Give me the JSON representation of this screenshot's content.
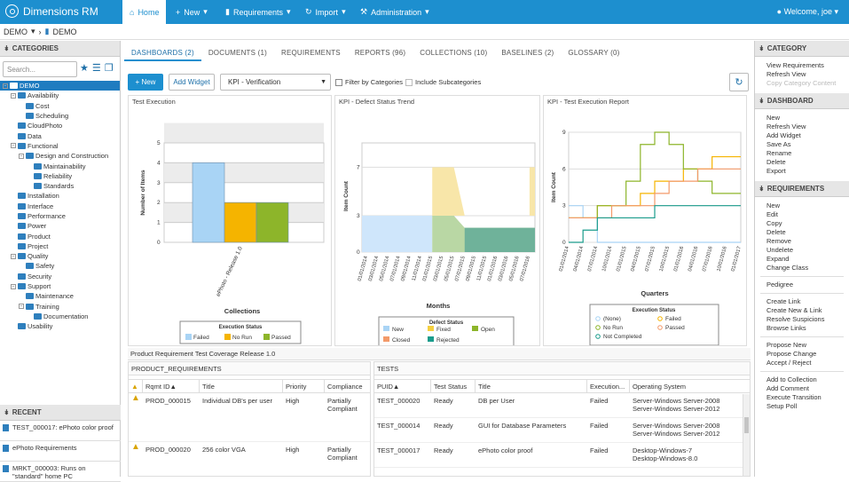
{
  "app": {
    "title": "Dimensions RM",
    "welcome": "Welcome, joe"
  },
  "nav": [
    {
      "label": "Home",
      "icon": "home-icon"
    },
    {
      "label": "New",
      "icon": "plus-icon"
    },
    {
      "label": "Requirements",
      "icon": "document-icon"
    },
    {
      "label": "Import",
      "icon": "import-icon"
    },
    {
      "label": "Administration",
      "icon": "wrench-icon"
    }
  ],
  "breadcrumb": {
    "root": "DEMO",
    "current": "DEMO"
  },
  "left": {
    "categories_title": "CATEGORIES",
    "search_placeholder": "Search...",
    "tree": [
      {
        "label": "DEMO",
        "level": 0,
        "sel": true
      },
      {
        "label": "Availability",
        "level": 1
      },
      {
        "label": "Cost",
        "level": 2
      },
      {
        "label": "Scheduling",
        "level": 2
      },
      {
        "label": "CloudPhoto",
        "level": 1
      },
      {
        "label": "Data",
        "level": 1
      },
      {
        "label": "Functional",
        "level": 1
      },
      {
        "label": "Design and Construction",
        "level": 2
      },
      {
        "label": "Maintainability",
        "level": 3
      },
      {
        "label": "Reliability",
        "level": 3
      },
      {
        "label": "Standards",
        "level": 3
      },
      {
        "label": "Installation",
        "level": 1
      },
      {
        "label": "Interface",
        "level": 1
      },
      {
        "label": "Performance",
        "level": 1
      },
      {
        "label": "Power",
        "level": 1
      },
      {
        "label": "Product",
        "level": 1
      },
      {
        "label": "Project",
        "level": 1
      },
      {
        "label": "Quality",
        "level": 1
      },
      {
        "label": "Safety",
        "level": 2
      },
      {
        "label": "Security",
        "level": 1
      },
      {
        "label": "Support",
        "level": 1
      },
      {
        "label": "Maintenance",
        "level": 2
      },
      {
        "label": "Training",
        "level": 2
      },
      {
        "label": "Documentation",
        "level": 3
      },
      {
        "label": "Usability",
        "level": 1
      }
    ],
    "recent_title": "RECENT",
    "recent": [
      "TEST_000017: ePhoto color proof",
      "ePhoto Requirements",
      "MRKT_000003: Runs on \"standard\" home PC"
    ]
  },
  "tabs": [
    "DASHBOARDS (2)",
    "DOCUMENTS (1)",
    "REQUIREMENTS",
    "REPORTS (96)",
    "COLLECTIONS (10)",
    "BASELINES (2)",
    "GLOSSARY (0)"
  ],
  "toolbar": {
    "new": "New",
    "add_widget": "Add Widget",
    "dashboard_select": "KPI - Verification",
    "filter": "Filter by Categories",
    "include": "Include Subcategories"
  },
  "chart_data": [
    {
      "type": "bar",
      "title": "Test Execution",
      "xlabel": "Collections",
      "ylabel": "Number of Items",
      "categories": [
        "ePhoto - Release 1.0"
      ],
      "series": [
        {
          "name": "Failed",
          "values": [
            4
          ],
          "color": "#a9d4f5"
        },
        {
          "name": "No Run",
          "values": [
            2
          ],
          "color": "#f5b400"
        },
        {
          "name": "Passed",
          "values": [
            2
          ],
          "color": "#8db52a"
        }
      ],
      "ylim": [
        0,
        5
      ],
      "yticks": [
        "0",
        "1",
        "2",
        "3",
        "4",
        "5"
      ],
      "legend_title": "Execution Status"
    },
    {
      "type": "area",
      "title": "KPI - Defect Status Trend",
      "xlabel": "Months",
      "ylabel": "Item Count",
      "x": [
        "01/01/2014",
        "03/01/2014",
        "05/01/2014",
        "07/01/2014",
        "09/01/2014",
        "11/01/2014",
        "01/01/2015",
        "03/01/2015",
        "05/01/2015",
        "07/01/2015",
        "09/01/2015",
        "11/01/2015",
        "01/01/2016",
        "03/01/2016",
        "05/01/2016",
        "07/01/2016"
      ],
      "yticks": [
        "0",
        "3",
        "7"
      ],
      "legend_title": "Defect Status",
      "legend": [
        "New",
        "Fixed",
        "Open",
        "Closed",
        "Rejected"
      ]
    },
    {
      "type": "line",
      "title": "KPI - Test Execution Report",
      "xlabel": "Quarters",
      "ylabel": "Item Count",
      "x": [
        "01/01/2014",
        "04/01/2014",
        "07/01/2014",
        "10/01/2014",
        "01/01/2015",
        "04/01/2015",
        "07/01/2015",
        "10/01/2015",
        "01/01/2016",
        "04/01/2016",
        "07/01/2016",
        "10/01/2016",
        "01/01/2017"
      ],
      "ylim": [
        0,
        9
      ],
      "yticks": [
        "0",
        "3",
        "6",
        "9"
      ],
      "series": [
        {
          "name": "(None)",
          "color": "#a9d4f5",
          "values": [
            3,
            2,
            0,
            0,
            0,
            0,
            0,
            0,
            0,
            0,
            0,
            0,
            0
          ]
        },
        {
          "name": "Failed",
          "color": "#f5b400",
          "values": [
            2,
            2,
            3,
            3,
            3,
            4,
            5,
            5,
            6,
            6,
            7,
            7,
            7
          ]
        },
        {
          "name": "No Run",
          "color": "#8db52a",
          "values": [
            2,
            2,
            3,
            3,
            5,
            8,
            9,
            8,
            6,
            5,
            4,
            4,
            4
          ]
        },
        {
          "name": "Passed",
          "color": "#f39a6a",
          "values": [
            2,
            2,
            2,
            3,
            3,
            3,
            4,
            5,
            5,
            6,
            6,
            6,
            6
          ]
        },
        {
          "name": "Not Completed",
          "color": "#1a9c8c",
          "values": [
            0,
            1,
            2,
            2,
            2,
            2,
            3,
            3,
            3,
            3,
            3,
            3,
            3
          ]
        }
      ],
      "legend_title": "Execution Status"
    }
  ],
  "bottom": {
    "title": "Product Requirement Test Coverage Release 1.0",
    "req_title": "PRODUCT_REQUIREMENTS",
    "req_cols": [
      "Rqmt ID▲",
      "Title",
      "Priority",
      "Compliance"
    ],
    "req_rows": [
      {
        "id": "PROD_000015",
        "title": "Individual DB's per user",
        "priority": "High",
        "compliance": "Partially Compliant"
      },
      {
        "id": "PROD_000020",
        "title": "256 color VGA",
        "priority": "High",
        "compliance": "Partially Compliant"
      }
    ],
    "tests_title": "TESTS",
    "test_cols": [
      "PUID▲",
      "Test Status",
      "Title",
      "Execution...",
      "Operating System"
    ],
    "test_rows": [
      {
        "id": "TEST_000020",
        "status": "Ready",
        "title": "DB per User",
        "exec": "Failed",
        "os1": "Server-Windows Server-2008",
        "os2": "Server-Windows Server-2012"
      },
      {
        "id": "TEST_000014",
        "status": "Ready",
        "title": "GUI for Database Parameters",
        "exec": "Failed",
        "os1": "Server-Windows Server-2008",
        "os2": "Server-Windows Server-2012"
      },
      {
        "id": "TEST_000017",
        "status": "Ready",
        "title": "ePhoto color proof",
        "exec": "Failed",
        "os1": "Desktop-Windows-7",
        "os2": "Desktop-Windows-8.0"
      }
    ]
  },
  "right": {
    "sections": [
      {
        "title": "CATEGORY",
        "groups": [
          [
            "View Requirements",
            "Refresh View",
            "Copy Category Content"
          ]
        ]
      },
      {
        "title": "DASHBOARD",
        "groups": [
          [
            "New",
            "Refresh View",
            "Add Widget",
            "Save As",
            "Rename",
            "Delete",
            "Export"
          ]
        ]
      },
      {
        "title": "REQUIREMENTS",
        "groups": [
          [
            "New",
            "Edit",
            "Copy",
            "Delete",
            "Remove",
            "Undelete",
            "Expand",
            "Change Class"
          ],
          [
            "Pedigree"
          ],
          [
            "Create Link",
            "Create New & Link",
            "Resolve Suspicions",
            "Browse Links"
          ],
          [
            "Propose New",
            "Propose Change",
            "Accept / Reject"
          ],
          [
            "Add to Collection",
            "Add Comment",
            "Execute Transition",
            "Setup Poll"
          ]
        ]
      }
    ]
  }
}
